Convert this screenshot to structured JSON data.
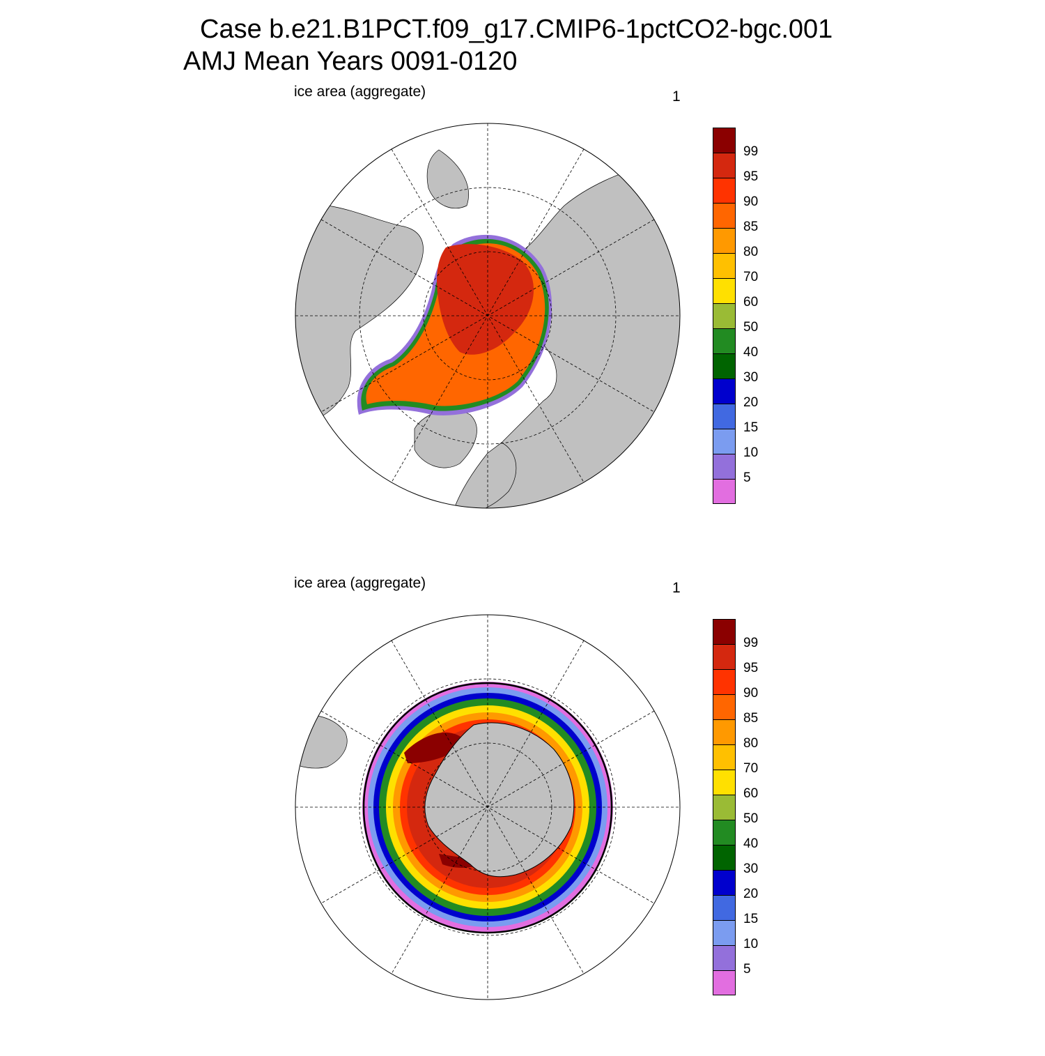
{
  "title": {
    "line1": "Case b.e21.B1PCT.f09_g17.CMIP6-1pctCO2-bgc.001",
    "line2": "AMJ Mean   Years 0091-0120"
  },
  "panels": [
    {
      "id": "north",
      "hemisphere": "Arctic",
      "left_label": "ice area  (aggregate)",
      "right_label": "1"
    },
    {
      "id": "south",
      "hemisphere": "Antarctic",
      "left_label": "ice area  (aggregate)",
      "right_label": "1"
    }
  ],
  "colorbar": {
    "colors": [
      "#8b0000",
      "#d4280f",
      "#ff3300",
      "#ff6600",
      "#ff9900",
      "#ffc000",
      "#ffe000",
      "#9abb35",
      "#228b22",
      "#006400",
      "#0000cd",
      "#4169e1",
      "#7b9cf0",
      "#9370db",
      "#e26ee0"
    ],
    "ticks": [
      "99",
      "95",
      "90",
      "85",
      "80",
      "70",
      "60",
      "50",
      "40",
      "30",
      "20",
      "15",
      "10",
      "5"
    ]
  },
  "map_style": {
    "land": "#c0c0c0",
    "ocean": "#ffffff"
  }
}
